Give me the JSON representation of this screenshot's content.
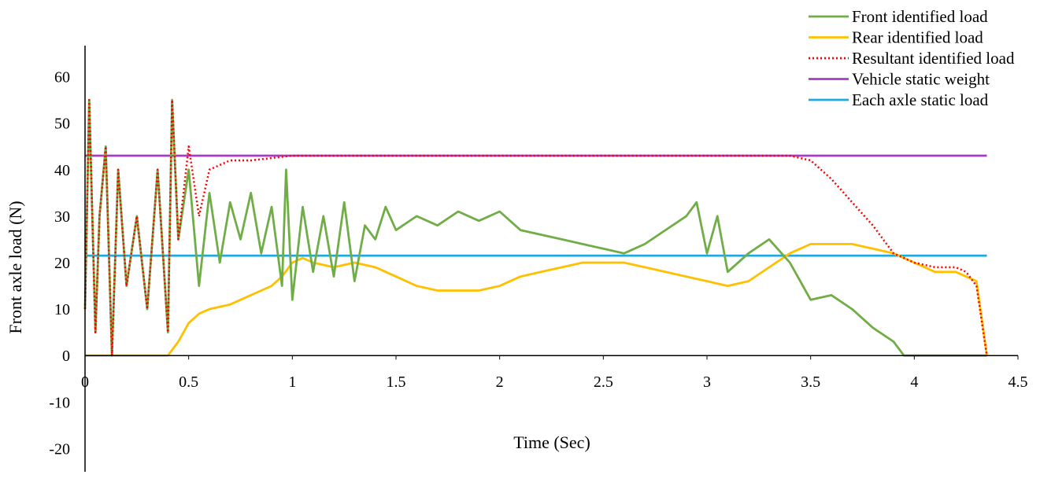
{
  "chart_data": {
    "type": "line",
    "title": "",
    "xlabel": "Time (Sec)",
    "ylabel": "Front axle load (N)",
    "xlim": [
      0,
      4.5
    ],
    "ylim": [
      -25,
      65
    ],
    "x_ticks": [
      0,
      0.5,
      1,
      1.5,
      2,
      2.5,
      3,
      3.5,
      4,
      4.5
    ],
    "x_tick_labels": [
      "0",
      "0.5",
      "1",
      "1.5",
      "2",
      "2.5",
      "3",
      "3.5",
      "4",
      "4.5"
    ],
    "y_ticks": [
      -20,
      -10,
      0,
      10,
      20,
      30,
      40,
      50,
      60
    ],
    "y_tick_labels": [
      "-20",
      "-10",
      "0",
      "10",
      "20",
      "30",
      "40",
      "50",
      "60"
    ],
    "grid": false,
    "legend_position": "top-right",
    "series": [
      {
        "name": "Front identified load",
        "color": "#70AD47",
        "style": "solid",
        "x": [
          0,
          0.02,
          0.05,
          0.07,
          0.1,
          0.13,
          0.16,
          0.2,
          0.25,
          0.3,
          0.35,
          0.4,
          0.42,
          0.45,
          0.5,
          0.55,
          0.6,
          0.65,
          0.7,
          0.75,
          0.8,
          0.85,
          0.9,
          0.95,
          0.97,
          1.0,
          1.05,
          1.1,
          1.15,
          1.2,
          1.25,
          1.3,
          1.35,
          1.4,
          1.45,
          1.5,
          1.6,
          1.7,
          1.8,
          1.9,
          2.0,
          2.1,
          2.2,
          2.3,
          2.4,
          2.5,
          2.6,
          2.7,
          2.8,
          2.9,
          2.95,
          3.0,
          3.05,
          3.1,
          3.2,
          3.3,
          3.4,
          3.5,
          3.6,
          3.7,
          3.8,
          3.9,
          3.95,
          4.0,
          4.2,
          4.35
        ],
        "y": [
          10,
          55,
          5,
          30,
          45,
          0,
          40,
          15,
          30,
          10,
          40,
          5,
          55,
          25,
          40,
          15,
          35,
          20,
          33,
          25,
          35,
          22,
          32,
          15,
          40,
          12,
          32,
          18,
          30,
          17,
          33,
          16,
          28,
          25,
          32,
          27,
          30,
          28,
          31,
          29,
          31,
          27,
          26,
          25,
          24,
          23,
          22,
          24,
          27,
          30,
          33,
          22,
          30,
          18,
          22,
          25,
          20,
          12,
          13,
          10,
          6,
          3,
          0,
          0,
          0,
          0
        ]
      },
      {
        "name": "Rear identified load",
        "color": "#FFC000",
        "style": "solid",
        "x": [
          0,
          0.1,
          0.2,
          0.3,
          0.4,
          0.45,
          0.5,
          0.55,
          0.6,
          0.7,
          0.8,
          0.9,
          0.95,
          1.0,
          1.05,
          1.1,
          1.2,
          1.3,
          1.4,
          1.5,
          1.6,
          1.7,
          1.8,
          1.9,
          2.0,
          2.1,
          2.2,
          2.3,
          2.4,
          2.5,
          2.6,
          2.7,
          2.8,
          2.9,
          3.0,
          3.1,
          3.2,
          3.3,
          3.4,
          3.5,
          3.6,
          3.7,
          3.8,
          3.9,
          4.0,
          4.1,
          4.2,
          4.3,
          4.35
        ],
        "y": [
          0,
          0,
          0,
          0,
          0,
          3,
          7,
          9,
          10,
          11,
          13,
          15,
          17,
          20,
          21,
          20,
          19,
          20,
          19,
          17,
          15,
          14,
          14,
          14,
          15,
          17,
          18,
          19,
          20,
          20,
          20,
          19,
          18,
          17,
          16,
          15,
          16,
          19,
          22,
          24,
          24,
          24,
          23,
          22,
          20,
          18,
          18,
          16,
          0
        ]
      },
      {
        "name": "Resultant identified load",
        "color": "#FF0000",
        "style": "dotted",
        "x": [
          0,
          0.02,
          0.05,
          0.07,
          0.1,
          0.13,
          0.16,
          0.2,
          0.25,
          0.3,
          0.35,
          0.4,
          0.42,
          0.45,
          0.5,
          0.55,
          0.6,
          0.7,
          0.8,
          1.0,
          1.2,
          1.4,
          1.6,
          1.8,
          2.0,
          2.2,
          2.4,
          2.6,
          2.8,
          3.0,
          3.2,
          3.4,
          3.5,
          3.6,
          3.7,
          3.8,
          3.85,
          3.9,
          4.0,
          4.1,
          4.2,
          4.25,
          4.3,
          4.35
        ],
        "y": [
          10,
          55,
          5,
          30,
          45,
          0,
          40,
          15,
          30,
          10,
          40,
          5,
          55,
          25,
          45,
          30,
          40,
          42,
          42,
          43,
          43,
          43,
          43,
          43,
          43,
          43,
          43,
          43,
          43,
          43,
          43,
          43,
          42,
          38,
          33,
          28,
          25,
          22,
          20,
          19,
          19,
          18,
          15,
          0
        ]
      },
      {
        "name": "Vehicle static weight",
        "color": "#A83BC6",
        "style": "solid",
        "x": [
          0,
          4.35
        ],
        "y": [
          43,
          43
        ]
      },
      {
        "name": "Each axle static load",
        "color": "#1CA9E1",
        "style": "solid",
        "x": [
          0,
          4.35
        ],
        "y": [
          21.5,
          21.5
        ]
      }
    ]
  }
}
